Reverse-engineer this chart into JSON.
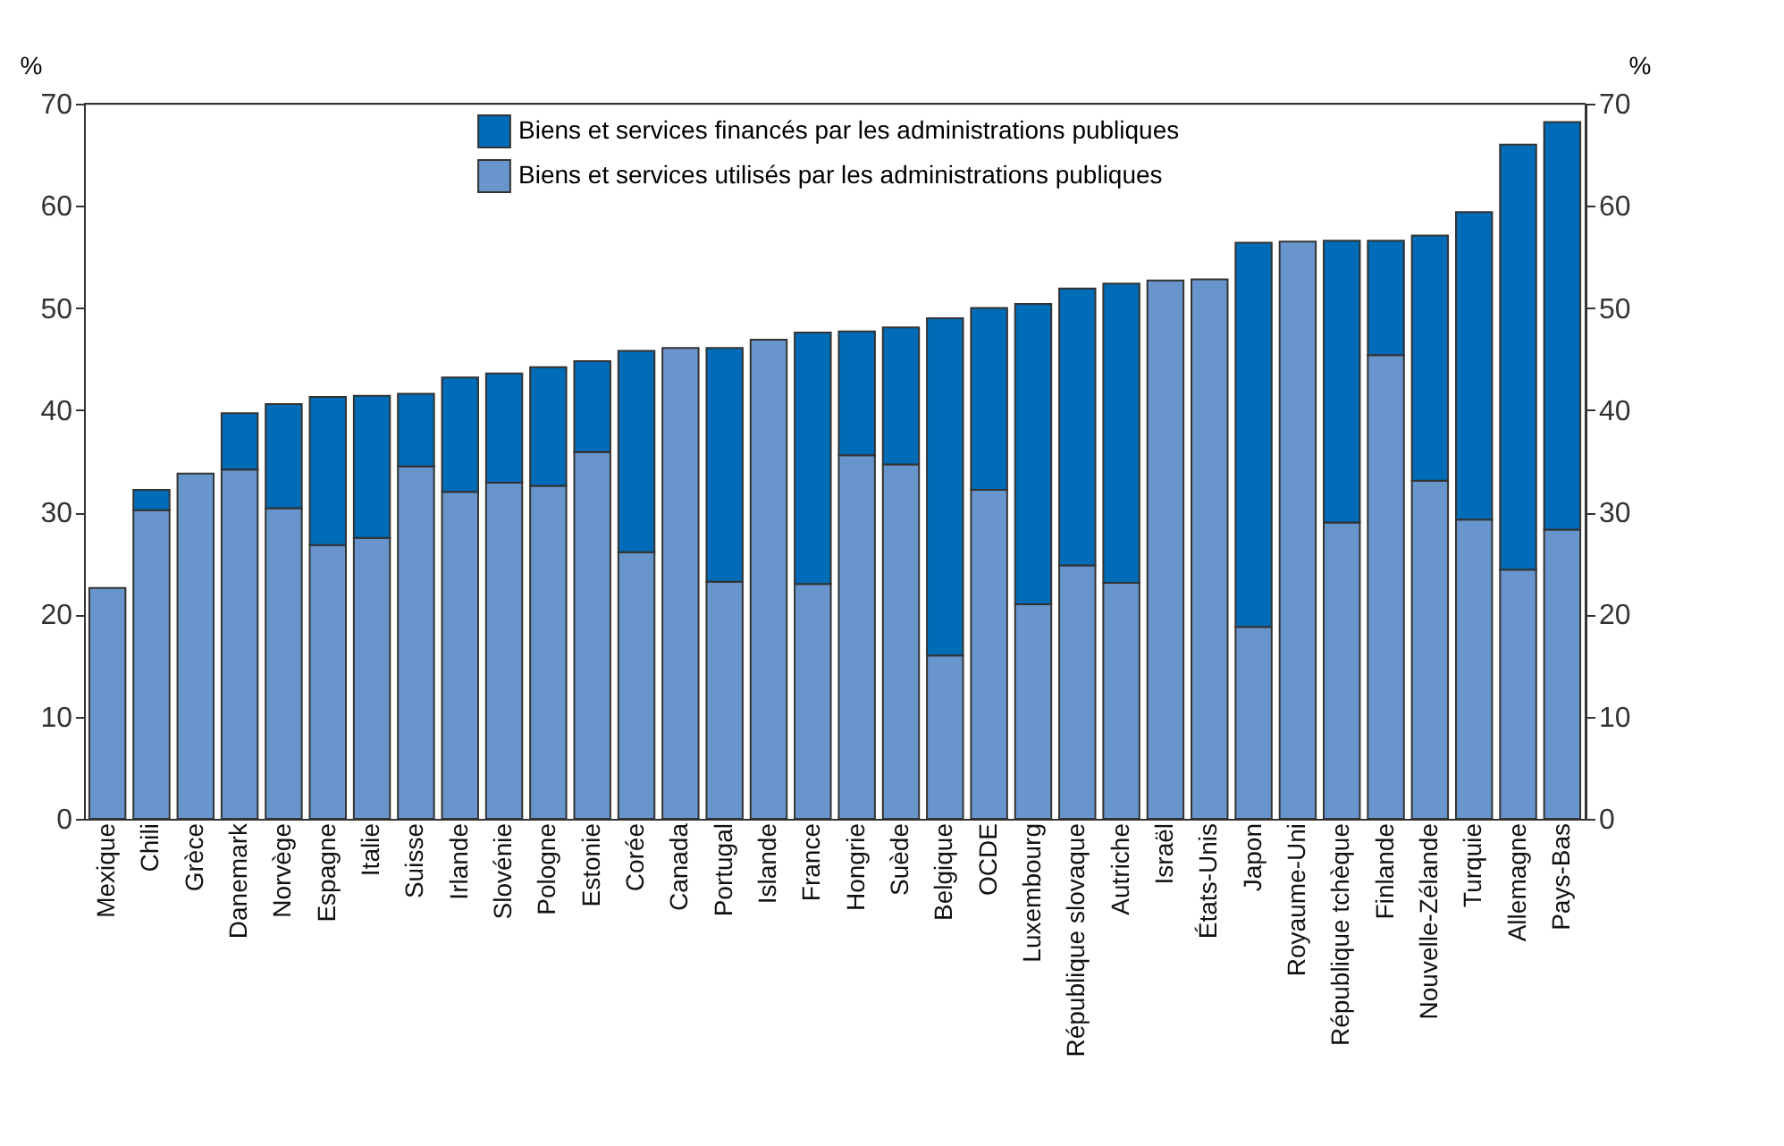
{
  "chart_data": {
    "type": "bar",
    "stacked": true,
    "ylabel": "%",
    "y2label": "%",
    "categories": [
      "Mexique",
      "Chili",
      "Grèce",
      "Danemark",
      "Norvège",
      "Espagne",
      "Italie",
      "Suisse",
      "Irlande",
      "Slovénie",
      "Pologne",
      "Estonie",
      "Corée",
      "Canada",
      "Portugal",
      "Islande",
      "France",
      "Hongrie",
      "Suède",
      "Belgique",
      "OCDE",
      "Luxembourg",
      "République slovaque",
      "Autriche",
      "Israël",
      "États-Unis",
      "Japon",
      "Royaume-Uni",
      "République tchèque",
      "Finlande",
      "Nouvelle-Zélande",
      "Turquie",
      "Allemagne",
      "Pays-Bas"
    ],
    "series": [
      {
        "name": "Biens et services utilisés par les administrations publiques",
        "color": "#6896cc",
        "values": [
          22.6,
          30.2,
          33.8,
          34.2,
          30.4,
          26.8,
          27.5,
          34.5,
          32.0,
          32.9,
          32.6,
          35.9,
          26.1,
          46.1,
          23.2,
          46.9,
          23.0,
          35.6,
          34.7,
          16.0,
          32.2,
          21.0,
          24.8,
          23.1,
          52.7,
          52.8,
          18.8,
          56.5,
          29.0,
          45.4,
          33.1,
          29.3,
          24.4,
          28.3
        ]
      },
      {
        "name": "Biens et services financés par les administrations publiques",
        "color": "#006bb6",
        "values": [
          null,
          2.0,
          null,
          5.5,
          10.2,
          14.5,
          13.9,
          7.1,
          11.2,
          10.7,
          11.6,
          8.9,
          19.7,
          null,
          22.9,
          null,
          24.6,
          12.1,
          13.4,
          33.0,
          17.8,
          29.4,
          27.1,
          29.3,
          null,
          null,
          37.6,
          null,
          27.6,
          11.2,
          24.0,
          30.1,
          41.6,
          39.9
        ]
      }
    ],
    "ylim": [
      0,
      70
    ],
    "yticks": [
      0,
      10,
      20,
      30,
      40,
      50,
      60,
      70
    ],
    "y2lim": [
      0,
      70
    ],
    "y2ticks": [
      0,
      10,
      20,
      30,
      40,
      50,
      60,
      70
    ],
    "grid": false,
    "legend": "top"
  }
}
